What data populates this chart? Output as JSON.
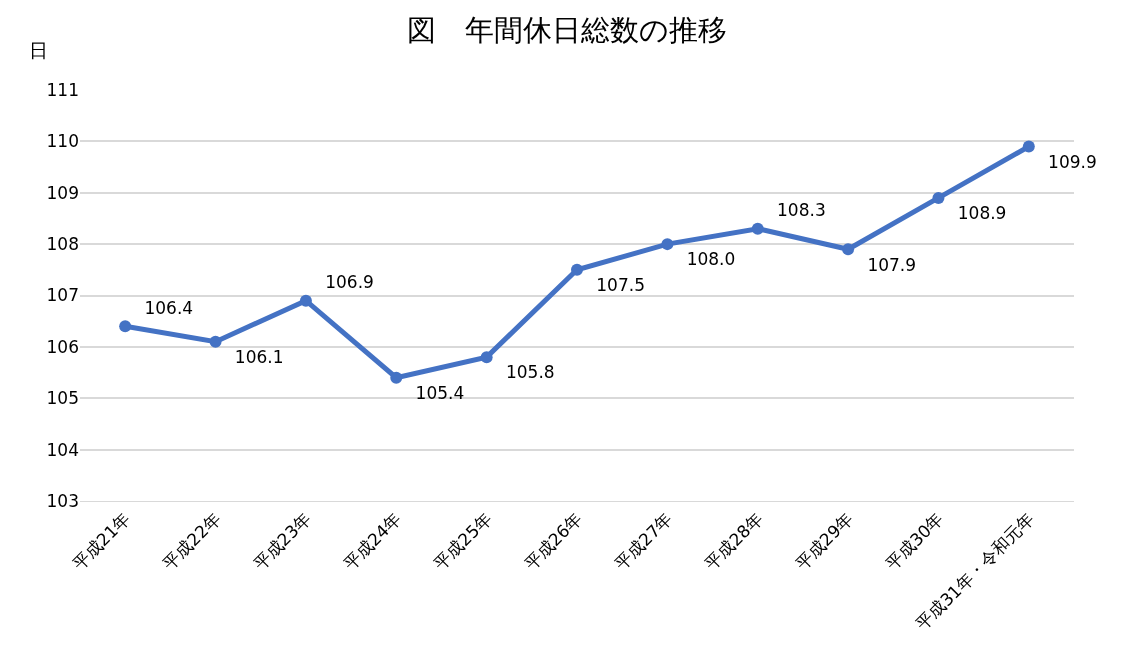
{
  "chart_data": {
    "type": "line",
    "title": "図　年間休日総数の推移",
    "ylabel": "日",
    "categories": [
      "平成21年",
      "平成22年",
      "平成23年",
      "平成24年",
      "平成25年",
      "平成26年",
      "平成27年",
      "平成28年",
      "平成29年",
      "平成30年",
      "平成31年・令和元年"
    ],
    "series": [
      {
        "color": "#4472c4",
        "values": [
          106.4,
          106.1,
          106.9,
          105.4,
          105.8,
          107.5,
          108.0,
          108.3,
          107.9,
          108.9,
          109.9
        ]
      }
    ],
    "value_labels": [
      "106.4",
      "106.1",
      "106.9",
      "105.4",
      "105.8",
      "107.5",
      "108.0",
      "108.3",
      "107.9",
      "108.9",
      "109.9"
    ],
    "ylim": [
      103,
      111
    ],
    "yticks": [
      103,
      104,
      105,
      106,
      107,
      108,
      109,
      110,
      111
    ],
    "grid": "y",
    "marker": "circle",
    "line_style": "solid"
  }
}
